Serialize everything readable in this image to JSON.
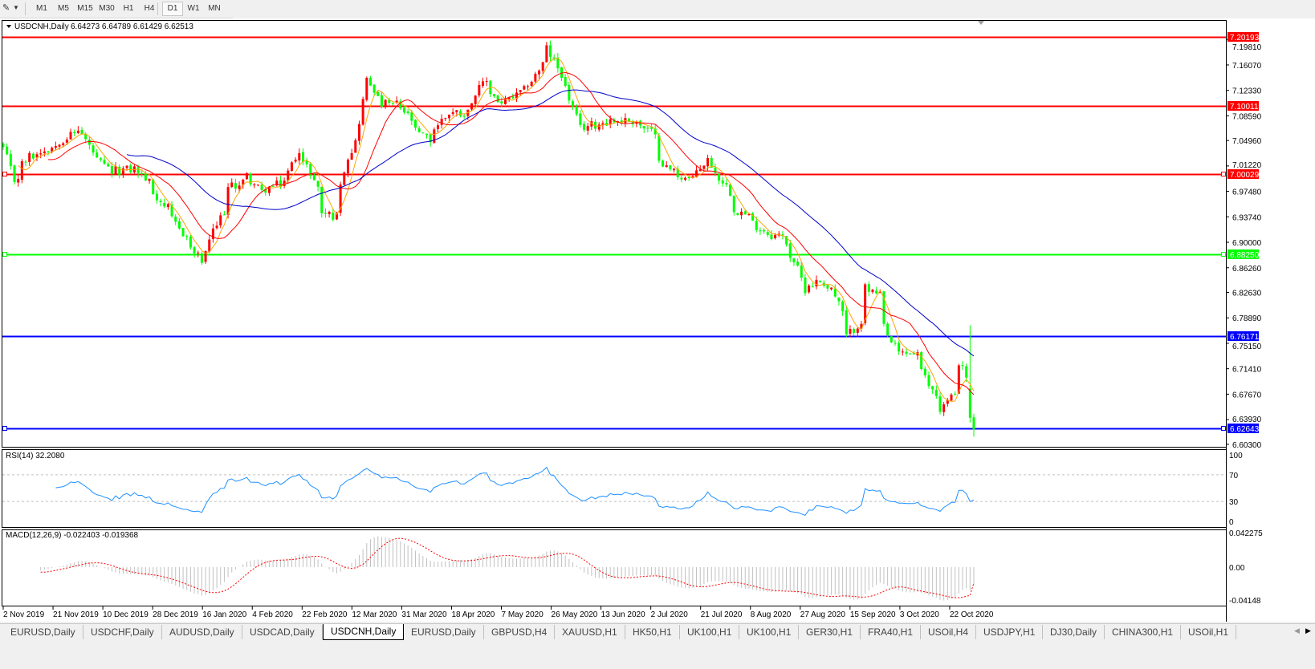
{
  "toolbar": {
    "tool_icon": "line-tool-icon",
    "timeframes": [
      "M1",
      "M5",
      "M15",
      "M30",
      "H1",
      "H4",
      "D1",
      "W1",
      "MN"
    ],
    "active_timeframe": "D1"
  },
  "chart": {
    "title": "USDCNH,Daily",
    "ohlc": "6.64273 6.64789 6.61429 6.62513",
    "rsi_label": "RSI(14) 32.2080",
    "macd_label": "MACD(12,26,9) -0.022403 -0.019368",
    "rsi_ticks": [
      "100",
      "70",
      "30",
      "0"
    ],
    "macd_ticks": [
      "0.042275",
      "0.00",
      "-0.04148"
    ]
  },
  "chart_data": {
    "type": "candlestick",
    "symbol": "USDCNH",
    "timeframe": "Daily",
    "last_bar": {
      "open": 6.64273,
      "high": 6.64789,
      "low": 6.61429,
      "close": 6.62513
    },
    "price_ticks": [
      "7.19810",
      "7.16070",
      "7.12330",
      "7.08590",
      "7.04960",
      "7.01220",
      "6.97480",
      "6.93740",
      "6.90000",
      "6.86260",
      "6.82630",
      "6.78890",
      "6.75150",
      "6.71410",
      "6.67670",
      "6.63930",
      "6.60300"
    ],
    "price_range": [
      6.6005,
      7.2231
    ],
    "horizontal_lines": [
      {
        "price": 7.20193,
        "label": "7.20193",
        "color": "#ff0000"
      },
      {
        "price": 7.10011,
        "label": "7.10011",
        "color": "#ff0000"
      },
      {
        "price": 7.00029,
        "label": "7.00029",
        "color": "#ff0000"
      },
      {
        "price": 6.8825,
        "label": "6.88250",
        "color": "#00ff00"
      },
      {
        "price": 6.76171,
        "label": "6.76171",
        "color": "#0000ff"
      },
      {
        "price": 6.62643,
        "label": "6.62643",
        "color": "#0000ff"
      }
    ],
    "date_labels": [
      "2 Nov 2019",
      "21 Nov 2019",
      "10 Dec 2019",
      "28 Dec 2019",
      "16 Jan 2020",
      "4 Feb 2020",
      "22 Feb 2020",
      "12 Mar 2020",
      "31 Mar 2020",
      "18 Apr 2020",
      "7 May 2020",
      "26 May 2020",
      "13 Jun 2020",
      "2 Jul 2020",
      "21 Jul 2020",
      "8 Aug 2020",
      "27 Aug 2020",
      "15 Sep 2020",
      "3 Oct 2020",
      "22 Oct 2020"
    ],
    "close_path": [
      [
        "2019-11-04",
        7.038
      ],
      [
        "2019-11-07",
        6.991
      ],
      [
        "2019-11-13",
        7.026
      ],
      [
        "2019-11-20",
        7.038
      ],
      [
        "2019-12-02",
        7.067
      ],
      [
        "2019-12-06",
        7.032
      ],
      [
        "2019-12-13",
        7.003
      ],
      [
        "2019-12-23",
        7.009
      ],
      [
        "2019-12-31",
        6.967
      ],
      [
        "2020-01-09",
        6.914
      ],
      [
        "2020-01-16",
        6.873
      ],
      [
        "2020-01-21",
        6.914
      ],
      [
        "2020-01-27",
        6.979
      ],
      [
        "2020-02-03",
        6.997
      ],
      [
        "2020-02-07",
        6.973
      ],
      [
        "2020-02-17",
        6.991
      ],
      [
        "2020-02-21",
        7.038
      ],
      [
        "2020-02-26",
        7.003
      ],
      [
        "2020-03-02",
        6.944
      ],
      [
        "2020-03-06",
        6.938
      ],
      [
        "2020-03-11",
        7.026
      ],
      [
        "2020-03-16",
        7.079
      ],
      [
        "2020-03-18",
        7.138
      ],
      [
        "2020-03-24",
        7.103
      ],
      [
        "2020-03-30",
        7.103
      ],
      [
        "2020-04-06",
        7.062
      ],
      [
        "2020-04-10",
        7.05
      ],
      [
        "2020-04-17",
        7.091
      ],
      [
        "2020-04-24",
        7.091
      ],
      [
        "2020-05-01",
        7.138
      ],
      [
        "2020-05-07",
        7.103
      ],
      [
        "2020-05-13",
        7.115
      ],
      [
        "2020-05-19",
        7.138
      ],
      [
        "2020-05-25",
        7.185
      ],
      [
        "2020-05-28",
        7.156
      ],
      [
        "2020-06-01",
        7.126
      ],
      [
        "2020-06-05",
        7.067
      ],
      [
        "2020-06-11",
        7.073
      ],
      [
        "2020-06-17",
        7.079
      ],
      [
        "2020-06-26",
        7.079
      ],
      [
        "2020-07-02",
        7.062
      ],
      [
        "2020-07-08",
        7.009
      ],
      [
        "2020-07-17",
        6.991
      ],
      [
        "2020-07-23",
        7.02
      ],
      [
        "2020-07-29",
        6.991
      ],
      [
        "2020-08-03",
        6.95
      ],
      [
        "2020-08-07",
        6.938
      ],
      [
        "2020-08-14",
        6.914
      ],
      [
        "2020-08-20",
        6.908
      ],
      [
        "2020-08-25",
        6.873
      ],
      [
        "2020-08-28",
        6.832
      ],
      [
        "2020-09-03",
        6.843
      ],
      [
        "2020-09-08",
        6.832
      ],
      [
        "2020-09-14",
        6.761
      ],
      [
        "2020-09-18",
        6.785
      ],
      [
        "2020-09-21",
        6.832
      ],
      [
        "2020-09-25",
        6.82
      ],
      [
        "2020-09-29",
        6.761
      ],
      [
        "2020-10-02",
        6.737
      ],
      [
        "2020-10-09",
        6.737
      ],
      [
        "2020-10-14",
        6.69
      ],
      [
        "2020-10-19",
        6.655
      ],
      [
        "2020-10-23",
        6.678
      ],
      [
        "2020-10-26",
        6.726
      ],
      [
        "2020-10-29",
        6.69
      ],
      [
        "2020-10-30",
        6.62513
      ]
    ],
    "candle_colors": {
      "bull": "#ff0000",
      "bear": "#00ff00"
    },
    "moving_average_colors": [
      "#ffa500",
      "#ff0000",
      "#0000cd"
    ],
    "rsi": {
      "period": 14,
      "value": 32.208,
      "levels": [
        70,
        30
      ],
      "color": "#1e90ff",
      "range": [
        0,
        100
      ]
    },
    "macd": {
      "fast": 12,
      "slow": 26,
      "signal": 9,
      "main": -0.022403,
      "signal_value": -0.019368,
      "range": [
        -0.04148,
        0.042275
      ],
      "histogram_color": "#c0c0c0",
      "signal_color": "#ff0000"
    }
  },
  "tabs": [
    "EURUSD,Daily",
    "USDCHF,Daily",
    "AUDUSD,Daily",
    "USDCAD,Daily",
    "USDCNH,Daily",
    "EURUSD,Daily",
    "GBPUSD,H4",
    "XAUUSD,H1",
    "HK50,H1",
    "UK100,H1",
    "UK100,H1",
    "GER30,H1",
    "FRA40,H1",
    "USOil,H4",
    "USDJPY,H1",
    "DJ30,Daily",
    "CHINA300,H1",
    "USOil,H1"
  ],
  "active_tab": "USDCNH,Daily"
}
